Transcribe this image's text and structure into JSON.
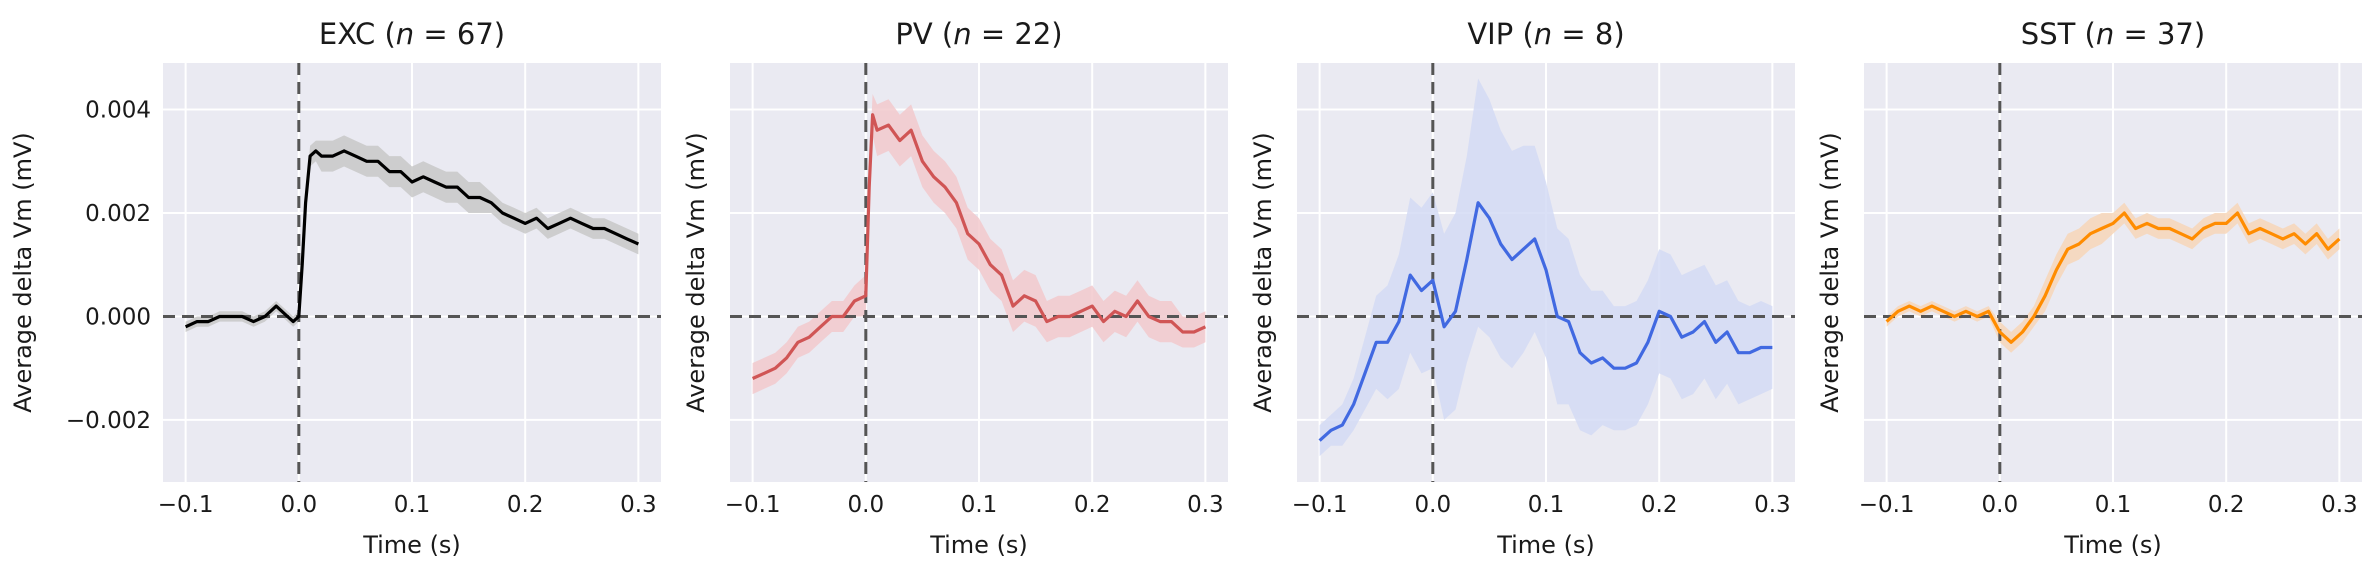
{
  "figure": {
    "background": "#ffffff",
    "axes_background": "#eaeaf2",
    "grid_color": "#ffffff",
    "zero_line_color": "#555555"
  },
  "chart_data": [
    {
      "type": "line",
      "title_prefix": "EXC (",
      "title_n": "n",
      "title_suffix": " = 67)",
      "xlabel": "Time (s)",
      "ylabel": "Average delta Vm (mV)",
      "xlim": [
        -0.12,
        0.32
      ],
      "ylim": [
        -0.0032,
        0.0049
      ],
      "xticks": [
        -0.1,
        0.0,
        0.1,
        0.2,
        0.3
      ],
      "xtick_labels": [
        "−0.1",
        "0.0",
        "0.1",
        "0.2",
        "0.3"
      ],
      "yticks": [
        -0.002,
        0.0,
        0.002,
        0.004
      ],
      "ytick_labels": [
        "−0.002",
        "0.000",
        "0.002",
        "0.004"
      ],
      "show_ytick_labels": true,
      "grid": true,
      "reference_lines": {
        "x": 0.0,
        "y": 0.0,
        "style": "dashed"
      },
      "series": [
        {
          "color": "#000000",
          "band_color": "#c8c8c8",
          "x": [
            -0.1,
            -0.09,
            -0.08,
            -0.07,
            -0.06,
            -0.05,
            -0.04,
            -0.03,
            -0.02,
            -0.01,
            -0.005,
            0.0,
            0.003,
            0.006,
            0.01,
            0.015,
            0.02,
            0.03,
            0.04,
            0.05,
            0.06,
            0.07,
            0.08,
            0.09,
            0.1,
            0.11,
            0.12,
            0.13,
            0.14,
            0.15,
            0.16,
            0.17,
            0.18,
            0.19,
            0.2,
            0.21,
            0.22,
            0.23,
            0.24,
            0.25,
            0.26,
            0.27,
            0.28,
            0.29,
            0.3
          ],
          "y": [
            -0.0002,
            -0.0001,
            -0.0001,
            0.0,
            0.0,
            0.0,
            -0.0001,
            0.0,
            0.0002,
            0.0,
            -0.0001,
            0.0,
            0.001,
            0.0022,
            0.0031,
            0.0032,
            0.0031,
            0.0031,
            0.0032,
            0.0031,
            0.003,
            0.003,
            0.0028,
            0.0028,
            0.0026,
            0.0027,
            0.0026,
            0.0025,
            0.0025,
            0.0023,
            0.0023,
            0.0022,
            0.002,
            0.0019,
            0.0018,
            0.0019,
            0.0017,
            0.0018,
            0.0019,
            0.0018,
            0.0017,
            0.0017,
            0.0016,
            0.0015,
            0.0014
          ],
          "band": [
            0.0001,
            0.0001,
            0.0001,
            0.0001,
            0.0001,
            0.0001,
            0.0001,
            0.0001,
            0.0001,
            0.0001,
            0.0001,
            0.0001,
            0.0002,
            0.0002,
            0.0002,
            0.0002,
            0.0003,
            0.0003,
            0.0003,
            0.0003,
            0.0003,
            0.0003,
            0.0003,
            0.0003,
            0.0003,
            0.0003,
            0.0003,
            0.0003,
            0.0003,
            0.0003,
            0.0003,
            0.0002,
            0.0002,
            0.0002,
            0.0002,
            0.0002,
            0.0002,
            0.0002,
            0.0002,
            0.0002,
            0.0002,
            0.0002,
            0.0002,
            0.0002,
            0.0002
          ]
        }
      ]
    },
    {
      "type": "line",
      "title_prefix": "PV (",
      "title_n": "n",
      "title_suffix": " = 22)",
      "xlabel": "Time (s)",
      "ylabel": "Average delta Vm (mV)",
      "xlim": [
        -0.12,
        0.32
      ],
      "ylim": [
        -0.0032,
        0.0049
      ],
      "xticks": [
        -0.1,
        0.0,
        0.1,
        0.2,
        0.3
      ],
      "xtick_labels": [
        "−0.1",
        "0.0",
        "0.1",
        "0.2",
        "0.3"
      ],
      "yticks": [
        -0.002,
        0.0,
        0.002,
        0.004
      ],
      "ytick_labels": [],
      "show_ytick_labels": false,
      "grid": true,
      "reference_lines": {
        "x": 0.0,
        "y": 0.0,
        "style": "dashed"
      },
      "series": [
        {
          "color": "#d05555",
          "band_color": "#f2c9cc",
          "x": [
            -0.1,
            -0.09,
            -0.08,
            -0.07,
            -0.06,
            -0.05,
            -0.04,
            -0.03,
            -0.02,
            -0.01,
            0.0,
            0.003,
            0.006,
            0.01,
            0.02,
            0.03,
            0.04,
            0.05,
            0.06,
            0.07,
            0.08,
            0.09,
            0.1,
            0.11,
            0.12,
            0.13,
            0.14,
            0.15,
            0.16,
            0.17,
            0.18,
            0.19,
            0.2,
            0.21,
            0.22,
            0.23,
            0.24,
            0.25,
            0.26,
            0.27,
            0.28,
            0.29,
            0.3
          ],
          "y": [
            -0.0012,
            -0.0011,
            -0.001,
            -0.0008,
            -0.0005,
            -0.0004,
            -0.0002,
            0.0,
            0.0,
            0.0003,
            0.0004,
            0.0025,
            0.0039,
            0.0036,
            0.0037,
            0.0034,
            0.0036,
            0.003,
            0.0027,
            0.0025,
            0.0022,
            0.0016,
            0.0014,
            0.001,
            0.0008,
            0.0002,
            0.0004,
            0.0003,
            -0.0001,
            0.0,
            0.0,
            0.0001,
            0.0002,
            -0.0001,
            0.0001,
            0.0,
            0.0003,
            0.0,
            -0.0001,
            -0.0001,
            -0.0003,
            -0.0003,
            -0.0002
          ],
          "band": [
            0.0003,
            0.0003,
            0.0003,
            0.0003,
            0.0003,
            0.0003,
            0.0003,
            0.0003,
            0.0003,
            0.0003,
            0.0004,
            0.0004,
            0.0004,
            0.0005,
            0.0005,
            0.0005,
            0.0005,
            0.0005,
            0.0005,
            0.0005,
            0.0005,
            0.0005,
            0.0005,
            0.0005,
            0.0005,
            0.0005,
            0.0005,
            0.0005,
            0.0004,
            0.0004,
            0.0004,
            0.0004,
            0.0004,
            0.0004,
            0.0004,
            0.0004,
            0.0004,
            0.0004,
            0.0004,
            0.0004,
            0.0003,
            0.0003,
            0.0003
          ]
        }
      ]
    },
    {
      "type": "line",
      "title_prefix": "VIP (",
      "title_n": "n",
      "title_suffix": " = 8)",
      "xlabel": "Time (s)",
      "ylabel": "Average delta Vm (mV)",
      "xlim": [
        -0.12,
        0.32
      ],
      "ylim": [
        -0.0032,
        0.0049
      ],
      "xticks": [
        -0.1,
        0.0,
        0.1,
        0.2,
        0.3
      ],
      "xtick_labels": [
        "−0.1",
        "0.0",
        "0.1",
        "0.2",
        "0.3"
      ],
      "yticks": [
        -0.002,
        0.0,
        0.002,
        0.004
      ],
      "ytick_labels": [],
      "show_ytick_labels": false,
      "grid": true,
      "reference_lines": {
        "x": 0.0,
        "y": 0.0,
        "style": "dashed"
      },
      "series": [
        {
          "color": "#4169e1",
          "band_color": "#d4dbf4",
          "x": [
            -0.1,
            -0.09,
            -0.08,
            -0.07,
            -0.06,
            -0.05,
            -0.04,
            -0.03,
            -0.02,
            -0.01,
            0.0,
            0.01,
            0.02,
            0.03,
            0.04,
            0.05,
            0.06,
            0.07,
            0.08,
            0.09,
            0.1,
            0.11,
            0.12,
            0.13,
            0.14,
            0.15,
            0.16,
            0.17,
            0.18,
            0.19,
            0.2,
            0.21,
            0.22,
            0.23,
            0.24,
            0.25,
            0.26,
            0.27,
            0.28,
            0.29,
            0.3
          ],
          "y": [
            -0.0024,
            -0.0022,
            -0.0021,
            -0.0017,
            -0.0011,
            -0.0005,
            -0.0005,
            -0.0001,
            0.0008,
            0.0005,
            0.0007,
            -0.0002,
            0.0001,
            0.0011,
            0.0022,
            0.0019,
            0.0014,
            0.0011,
            0.0013,
            0.0015,
            0.0009,
            0.0,
            -0.0001,
            -0.0007,
            -0.0009,
            -0.0008,
            -0.001,
            -0.001,
            -0.0009,
            -0.0005,
            0.0001,
            0.0,
            -0.0004,
            -0.0003,
            -0.0001,
            -0.0005,
            -0.0003,
            -0.0007,
            -0.0007,
            -0.0006,
            -0.0006
          ],
          "band": [
            0.0003,
            0.0003,
            0.0004,
            0.0005,
            0.0007,
            0.0009,
            0.0011,
            0.0013,
            0.0015,
            0.0016,
            0.0017,
            0.0018,
            0.0019,
            0.002,
            0.0024,
            0.0023,
            0.0022,
            0.0021,
            0.002,
            0.0018,
            0.0017,
            0.0017,
            0.0016,
            0.0015,
            0.0014,
            0.0013,
            0.0012,
            0.0012,
            0.0012,
            0.0012,
            0.0012,
            0.0012,
            0.0012,
            0.0012,
            0.0011,
            0.0011,
            0.001,
            0.001,
            0.0009,
            0.0009,
            0.0008
          ]
        }
      ]
    },
    {
      "type": "line",
      "title_prefix": "SST (",
      "title_n": "n",
      "title_suffix": " = 37)",
      "xlabel": "Time (s)",
      "ylabel": "Average delta Vm (mV)",
      "xlim": [
        -0.12,
        0.32
      ],
      "ylim": [
        -0.0032,
        0.0049
      ],
      "xticks": [
        -0.1,
        0.0,
        0.1,
        0.2,
        0.3
      ],
      "xtick_labels": [
        "−0.1",
        "0.0",
        "0.1",
        "0.2",
        "0.3"
      ],
      "yticks": [
        -0.002,
        0.0,
        0.002,
        0.004
      ],
      "ytick_labels": [],
      "show_ytick_labels": false,
      "grid": true,
      "reference_lines": {
        "x": 0.0,
        "y": 0.0,
        "style": "dashed"
      },
      "series": [
        {
          "color": "#ff8c00",
          "band_color": "#f7d6b8",
          "x": [
            -0.1,
            -0.09,
            -0.08,
            -0.07,
            -0.06,
            -0.05,
            -0.04,
            -0.03,
            -0.02,
            -0.01,
            0.0,
            0.01,
            0.02,
            0.03,
            0.04,
            0.05,
            0.06,
            0.07,
            0.08,
            0.09,
            0.1,
            0.11,
            0.12,
            0.13,
            0.14,
            0.15,
            0.16,
            0.17,
            0.18,
            0.19,
            0.2,
            0.21,
            0.22,
            0.23,
            0.24,
            0.25,
            0.26,
            0.27,
            0.28,
            0.29,
            0.3
          ],
          "y": [
            -0.0001,
            0.0001,
            0.0002,
            0.0001,
            0.0002,
            0.0001,
            0.0,
            0.0001,
            0.0,
            0.0001,
            -0.0003,
            -0.0005,
            -0.0003,
            0.0,
            0.0004,
            0.0009,
            0.0013,
            0.0014,
            0.0016,
            0.0017,
            0.0018,
            0.002,
            0.0017,
            0.0018,
            0.0017,
            0.0017,
            0.0016,
            0.0015,
            0.0017,
            0.0018,
            0.0018,
            0.002,
            0.0016,
            0.0017,
            0.0016,
            0.0015,
            0.0016,
            0.0014,
            0.0016,
            0.0013,
            0.0015
          ],
          "band": [
            0.0001,
            0.0001,
            0.0001,
            0.0001,
            0.0001,
            0.0001,
            0.0001,
            0.0001,
            0.0001,
            0.0001,
            0.0002,
            0.0002,
            0.0002,
            0.0002,
            0.0003,
            0.0003,
            0.0003,
            0.0003,
            0.0003,
            0.0003,
            0.0002,
            0.0002,
            0.0002,
            0.0002,
            0.0002,
            0.0002,
            0.0002,
            0.0002,
            0.0002,
            0.0002,
            0.0002,
            0.0002,
            0.0002,
            0.0002,
            0.0002,
            0.0002,
            0.0002,
            0.0002,
            0.0002,
            0.0002,
            0.0002
          ]
        }
      ]
    }
  ]
}
